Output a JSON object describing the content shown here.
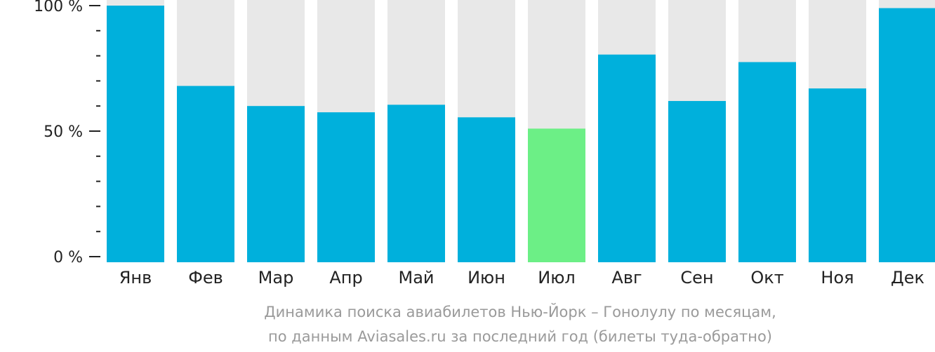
{
  "chart_data": {
    "type": "bar",
    "categories": [
      "Янв",
      "Фев",
      "Мар",
      "Апр",
      "Май",
      "Июн",
      "Июл",
      "Авг",
      "Сен",
      "Окт",
      "Ноя",
      "Дек"
    ],
    "values": [
      100,
      68,
      60,
      57.5,
      60.5,
      55.5,
      51,
      80.5,
      62,
      77.5,
      67,
      99
    ],
    "highlight_index": 6,
    "ylim": [
      0,
      100
    ],
    "yticks": [
      {
        "value": 100,
        "label": "100 %"
      },
      {
        "value": 50,
        "label": "50 %"
      },
      {
        "value": 0,
        "label": "0 %"
      }
    ],
    "minor_ticks": [
      10,
      20,
      30,
      40,
      60,
      70,
      80,
      90
    ],
    "caption": [
      "Динамика поиска авиабилетов Нью-Йорк – Гонолулу по месяцам,",
      "по данным Aviasales.ru за последний год (билеты туда-обратно)"
    ],
    "colors": {
      "bar": "#00b0dc",
      "highlight": "#6cef86",
      "background_bar": "#e8e8e8",
      "axis": "#222222",
      "caption": "#9a9a9a"
    }
  }
}
